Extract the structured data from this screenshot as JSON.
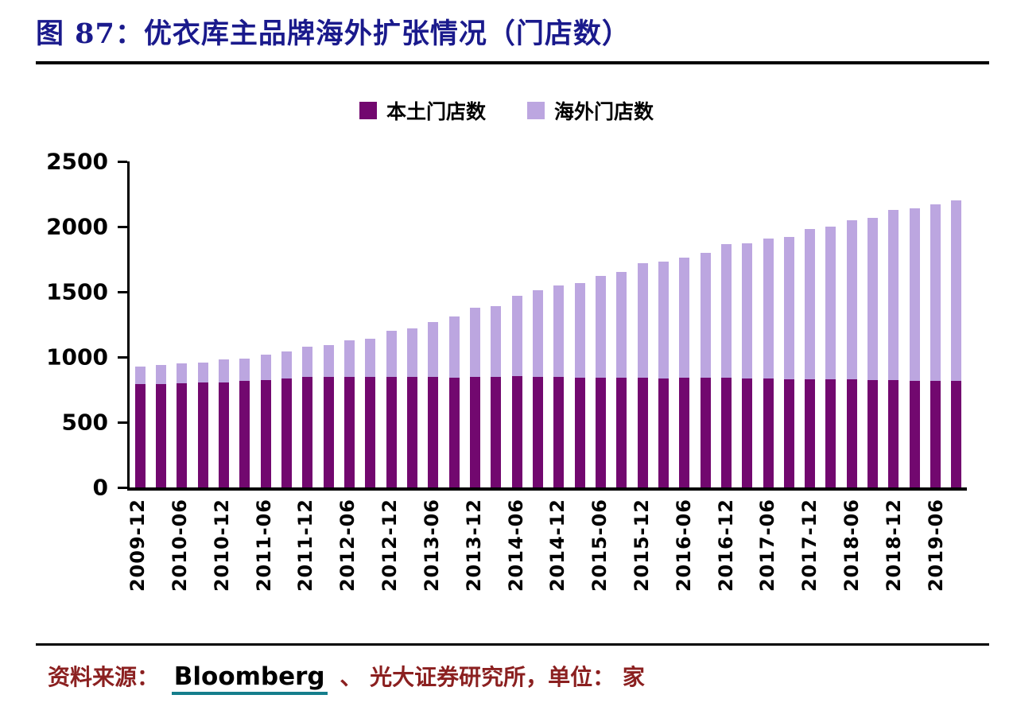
{
  "figure": {
    "title": "图 87：优衣库主品牌海外扩张情况（门店数）",
    "source_prefix": "资料来源：",
    "source_link": "Bloomberg",
    "source_suffix": "、 光大证券研究所，单位： 家",
    "colors": {
      "title_text": "#1A1A8C",
      "source_text": "#8B2020",
      "link_underline": "#157E8C"
    }
  },
  "chart_data": {
    "type": "bar",
    "subtype": "stacked-vertical",
    "title": "优衣库主品牌海外扩张情况（门店数）",
    "legend": [
      "本土门店数",
      "海外门店数"
    ],
    "legend_position": "top-center",
    "grid": false,
    "unit": "家",
    "ylim": [
      0,
      2500
    ],
    "yticks": [
      0,
      500,
      1000,
      1500,
      2000,
      2500
    ],
    "tick_labels": [
      "2009-12",
      "2010-06",
      "2010-12",
      "2011-06",
      "2011-12",
      "2012-06",
      "2012-12",
      "2013-06",
      "2013-12",
      "2014-06",
      "2014-12",
      "2015-06",
      "2015-12",
      "2016-06",
      "2016-12",
      "2017-06",
      "2017-12",
      "2018-06",
      "2018-12",
      "2019-06"
    ],
    "label_every": 2,
    "n_bars": 40,
    "colors": {
      "domestic": "#72086F",
      "overseas": "#BCA6E0"
    },
    "series": [
      {
        "name": "本土门店数",
        "values": [
          790,
          795,
          800,
          805,
          808,
          815,
          825,
          835,
          845,
          845,
          845,
          848,
          850,
          850,
          845,
          843,
          850,
          848,
          852,
          848,
          845,
          840,
          843,
          840,
          841,
          838,
          840,
          842,
          840,
          836,
          834,
          832,
          831,
          828,
          827,
          825,
          825,
          820,
          818,
          815
        ]
      },
      {
        "name": "海外门店数",
        "values": [
          140,
          145,
          150,
          155,
          172,
          175,
          195,
          205,
          235,
          245,
          285,
          292,
          350,
          370,
          425,
          467,
          530,
          542,
          618,
          662,
          705,
          730,
          777,
          810,
          879,
          892,
          920,
          958,
          1026,
          1034,
          1076,
          1088,
          1149,
          1172,
          1223,
          1245,
          1305,
          1320,
          1352,
          1385
        ]
      }
    ]
  }
}
